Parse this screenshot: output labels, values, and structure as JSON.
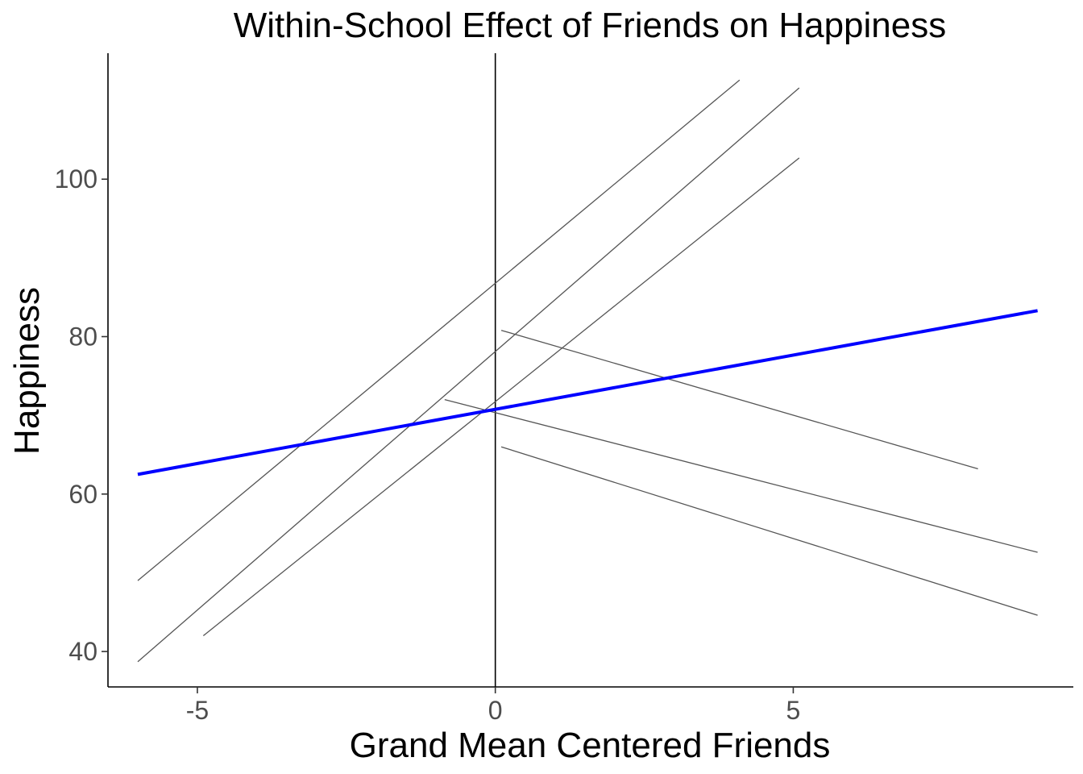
{
  "chart_data": {
    "type": "line",
    "title": "Within-School Effect of Friends on Happiness",
    "xlabel": "Grand Mean Centered Friends",
    "ylabel": "Happiness",
    "xlim": [
      -6.5,
      9.7
    ],
    "ylim": [
      35.5,
      116
    ],
    "x_ticks": [
      -5,
      0,
      5
    ],
    "x_tick_labels": [
      "-5",
      "0",
      "5"
    ],
    "y_ticks": [
      40,
      60,
      80,
      100
    ],
    "y_tick_labels": [
      "40",
      "60",
      "80",
      "100"
    ],
    "grid": false,
    "legend": "none",
    "reference_line": {
      "x": 0,
      "color": "#000000"
    },
    "school_line_color": "#555555",
    "average_line_color": "#0000ff",
    "school_lines": [
      {
        "x": [
          -6,
          4.1
        ],
        "y": [
          49,
          112.6
        ]
      },
      {
        "x": [
          -6,
          5.1
        ],
        "y": [
          38.7,
          111.6
        ]
      },
      {
        "x": [
          -4.9,
          5.1
        ],
        "y": [
          42,
          102.7
        ]
      },
      {
        "x": [
          0.1,
          8.1
        ],
        "y": [
          80.8,
          63.2
        ]
      },
      {
        "x": [
          -0.85,
          9.1
        ],
        "y": [
          72,
          52.6
        ]
      },
      {
        "x": [
          0.1,
          9.1
        ],
        "y": [
          66,
          44.6
        ]
      }
    ],
    "average_line": {
      "x": [
        -6,
        9.1
      ],
      "y": [
        62.5,
        83.3
      ]
    }
  }
}
